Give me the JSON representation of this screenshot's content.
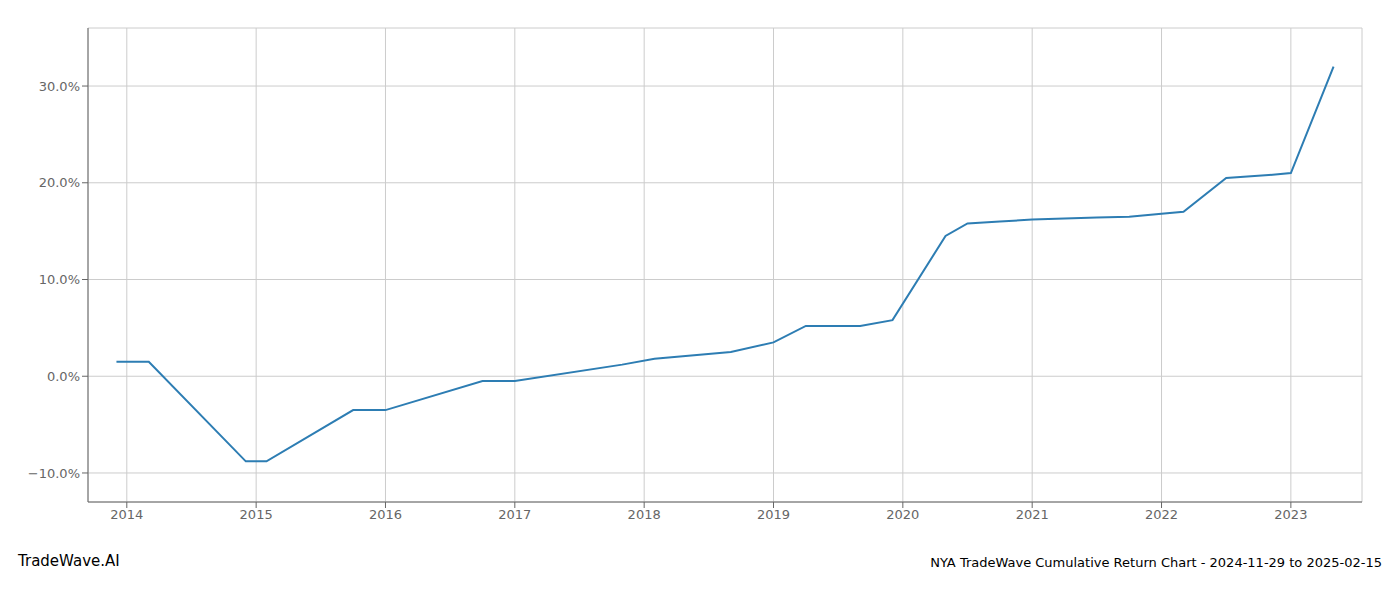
{
  "chart_data": {
    "type": "line",
    "title": "NYA TradeWave Cumulative Return Chart - 2024-11-29 to 2025-02-15",
    "annotations": [
      "TradeWave.AI"
    ],
    "x": [
      2013.92,
      2014.17,
      2014.92,
      2015.08,
      2015.75,
      2016.0,
      2016.75,
      2017.0,
      2017.83,
      2018.08,
      2018.67,
      2019.0,
      2019.25,
      2019.67,
      2019.92,
      2020.33,
      2020.5,
      2020.75,
      2021.0,
      2021.5,
      2021.75,
      2022.0,
      2022.17,
      2022.5,
      2022.83,
      2023.0,
      2023.33
    ],
    "values": [
      1.5,
      1.5,
      -8.8,
      -8.8,
      -3.5,
      -3.5,
      -0.5,
      -0.5,
      1.2,
      1.8,
      2.5,
      3.5,
      5.2,
      5.2,
      5.8,
      14.5,
      15.8,
      16.0,
      16.2,
      16.4,
      16.5,
      16.8,
      17.0,
      20.5,
      20.8,
      21.0,
      32.0
    ],
    "color": "#2d7db3",
    "xlim": [
      2013.7,
      2023.55
    ],
    "xticks": [
      2014,
      2015,
      2016,
      2017,
      2018,
      2019,
      2020,
      2021,
      2022,
      2023
    ],
    "ylim": [
      -13,
      36
    ],
    "yticks": [
      {
        "value": -10.0,
        "label": "−10.0%"
      },
      {
        "value": 0.0,
        "label": "0.0%"
      },
      {
        "value": 10.0,
        "label": "10.0%"
      },
      {
        "value": 20.0,
        "label": "20.0%"
      },
      {
        "value": 30.0,
        "label": "30.0%"
      }
    ],
    "grid": true
  }
}
